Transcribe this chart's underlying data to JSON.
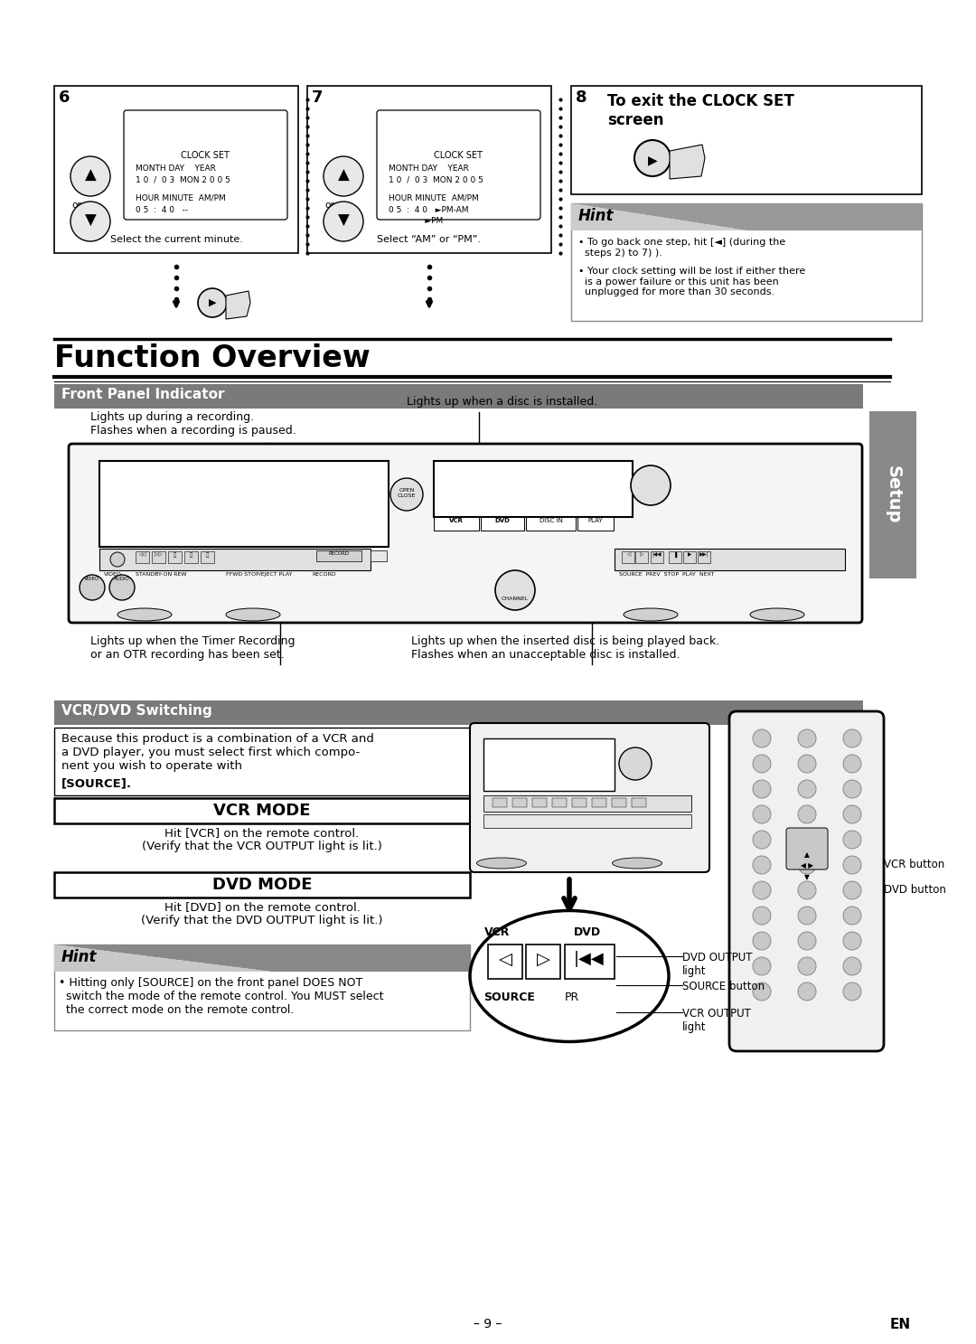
{
  "bg": "#ffffff",
  "title": "Function Overview",
  "sec1": "Front Panel Indicator",
  "sec2": "VCR/DVD Switching",
  "setup_tab": "Setup",
  "ann1": "Lights up during a recording.\nFlashes when a recording is paused.",
  "ann2": "Lights up when a disc is installed.",
  "ann3": "Lights up when the Timer Recording\nor an OTR recording has been set.",
  "ann4": "Lights up when the inserted disc is being played back.\nFlashes when an unacceptable disc is installed.",
  "vcr_dvd_intro": "Because this product is a combination of a VCR and\na DVD player, you must select first which compo-\nnent you wish to operate with ",
  "vcr_dvd_bold": "[SOURCE].",
  "vcr_mode_title": "VCR MODE",
  "vcr_mode_text": "Hit [VCR] on the remote control.\n(Verify that the VCR OUTPUT light is lit.)",
  "dvd_mode_title": "DVD MODE",
  "dvd_mode_text": "Hit [DVD] on the remote control.\n(Verify that the DVD OUTPUT light is lit.)",
  "hint2_title": "Hint",
  "hint2_text": "• Hitting only [SOURCE] on the front panel DOES NOT\n  switch the mode of the remote control. You MUST select\n  the correct mode on the remote control.",
  "lbl_vcr_btn": "VCR button",
  "lbl_dvd_btn": "DVD button",
  "lbl_dvd_out": "DVD OUTPUT\nlight",
  "lbl_src_btn": "SOURCE button",
  "lbl_vcr_out": "VCR OUTPUT\nlight",
  "step6_n": "6",
  "step7_n": "7",
  "step8_n": "8",
  "step8_txt": "To exit the CLOCK SET\nscreen",
  "step6_cap": "Select the current minute.",
  "step7_cap": "Select “AM” or “PM”.",
  "hint_title": "Hint",
  "hint_b1": "• To go back one step, hit [◄] (during the\n  steps 2) to 7) ).",
  "hint_b2": "• Your clock setting will be lost if either there\n  is a power failure or this unit has been\n  unplugged for more than 30 seconds.",
  "pg_num": "– 9 –",
  "pg_en": "EN",
  "gray_sec": "#7a7a7a",
  "gray_hint": "#999999"
}
